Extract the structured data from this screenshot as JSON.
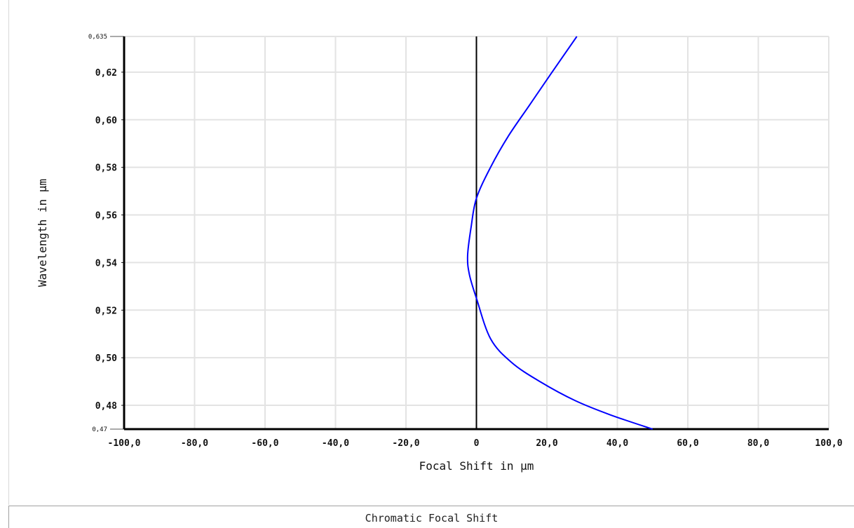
{
  "caption": "Chromatic Focal Shift",
  "chart_data": {
    "type": "line",
    "xlabel": "Focal Shift in µm",
    "ylabel": "Wavelength in µm",
    "xlim": [
      -100,
      100
    ],
    "ylim": [
      0.47,
      0.635
    ],
    "x_ticks": [
      -100,
      -80,
      -60,
      -40,
      -20,
      0,
      20,
      40,
      60,
      80,
      100
    ],
    "x_tick_labels": [
      "-100,0",
      "-80,0",
      "-60,0",
      "-40,0",
      "-20,0",
      "0",
      "20,0",
      "40,0",
      "60,0",
      "80,0",
      "100,0"
    ],
    "y_ticks": [
      0.48,
      0.5,
      0.52,
      0.54,
      0.56,
      0.58,
      0.6,
      0.62
    ],
    "y_tick_labels": [
      "0,48",
      "0,50",
      "0,52",
      "0,54",
      "0,56",
      "0,58",
      "0,60",
      "0,62"
    ],
    "y_limit_labels": [
      "0,47",
      "0,635"
    ],
    "grid": true,
    "zero_line": true,
    "series": [
      {
        "color": "#0000ff",
        "points": [
          {
            "x": 50.0,
            "y": 0.47
          },
          {
            "x": 38.0,
            "y": 0.476
          },
          {
            "x": 28.0,
            "y": 0.482
          },
          {
            "x": 18.0,
            "y": 0.49
          },
          {
            "x": 10.0,
            "y": 0.498
          },
          {
            "x": 4.0,
            "y": 0.508
          },
          {
            "x": 0.0,
            "y": 0.525
          },
          {
            "x": -2.0,
            "y": 0.535
          },
          {
            "x": -2.5,
            "y": 0.543
          },
          {
            "x": -1.5,
            "y": 0.555
          },
          {
            "x": 0.0,
            "y": 0.567
          },
          {
            "x": 4.0,
            "y": 0.58
          },
          {
            "x": 9.0,
            "y": 0.593
          },
          {
            "x": 15.0,
            "y": 0.606
          },
          {
            "x": 21.0,
            "y": 0.619
          },
          {
            "x": 28.5,
            "y": 0.635
          }
        ]
      }
    ]
  }
}
